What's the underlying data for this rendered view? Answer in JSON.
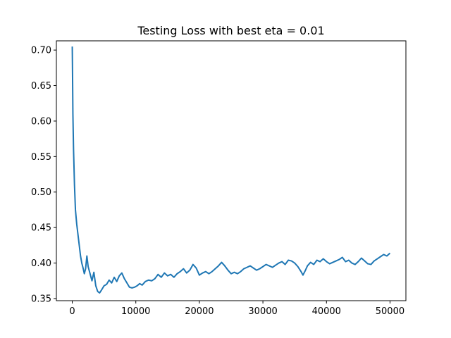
{
  "chart_data": {
    "type": "line",
    "title": "Testing Loss with best eta = 0.01",
    "xlabel": "",
    "ylabel": "",
    "xlim": [
      -2500,
      52500
    ],
    "ylim": [
      0.347,
      0.713
    ],
    "x_ticks": [
      0,
      10000,
      20000,
      30000,
      40000,
      50000
    ],
    "y_ticks": [
      0.35,
      0.4,
      0.45,
      0.5,
      0.55,
      0.6,
      0.65,
      0.7
    ],
    "grid": false,
    "legend": "none",
    "line_color": "#1f77b4",
    "series": [
      {
        "points": [
          [
            0,
            0.705
          ],
          [
            50,
            0.66
          ],
          [
            100,
            0.61
          ],
          [
            200,
            0.56
          ],
          [
            350,
            0.51
          ],
          [
            500,
            0.475
          ],
          [
            700,
            0.455
          ],
          [
            900,
            0.44
          ],
          [
            1100,
            0.425
          ],
          [
            1300,
            0.41
          ],
          [
            1500,
            0.4
          ],
          [
            1700,
            0.393
          ],
          [
            1900,
            0.385
          ],
          [
            2100,
            0.392
          ],
          [
            2300,
            0.41
          ],
          [
            2500,
            0.395
          ],
          [
            2800,
            0.385
          ],
          [
            3100,
            0.375
          ],
          [
            3400,
            0.387
          ],
          [
            3700,
            0.368
          ],
          [
            4000,
            0.36
          ],
          [
            4300,
            0.358
          ],
          [
            4600,
            0.362
          ],
          [
            5000,
            0.368
          ],
          [
            5400,
            0.37
          ],
          [
            5800,
            0.376
          ],
          [
            6200,
            0.372
          ],
          [
            6600,
            0.38
          ],
          [
            7000,
            0.374
          ],
          [
            7400,
            0.382
          ],
          [
            7800,
            0.386
          ],
          [
            8200,
            0.378
          ],
          [
            8600,
            0.372
          ],
          [
            9000,
            0.366
          ],
          [
            9400,
            0.365
          ],
          [
            9800,
            0.366
          ],
          [
            10200,
            0.368
          ],
          [
            10600,
            0.371
          ],
          [
            11000,
            0.369
          ],
          [
            11500,
            0.374
          ],
          [
            12000,
            0.376
          ],
          [
            12500,
            0.375
          ],
          [
            13000,
            0.378
          ],
          [
            13500,
            0.384
          ],
          [
            14000,
            0.38
          ],
          [
            14500,
            0.386
          ],
          [
            15000,
            0.382
          ],
          [
            15500,
            0.384
          ],
          [
            16000,
            0.38
          ],
          [
            16500,
            0.385
          ],
          [
            17000,
            0.388
          ],
          [
            17500,
            0.392
          ],
          [
            18000,
            0.386
          ],
          [
            18500,
            0.39
          ],
          [
            19000,
            0.398
          ],
          [
            19500,
            0.393
          ],
          [
            20000,
            0.383
          ],
          [
            20500,
            0.386
          ],
          [
            21000,
            0.388
          ],
          [
            21500,
            0.385
          ],
          [
            22000,
            0.388
          ],
          [
            22500,
            0.392
          ],
          [
            23000,
            0.396
          ],
          [
            23500,
            0.401
          ],
          [
            24000,
            0.396
          ],
          [
            24500,
            0.39
          ],
          [
            25000,
            0.385
          ],
          [
            25500,
            0.387
          ],
          [
            26000,
            0.385
          ],
          [
            26500,
            0.388
          ],
          [
            27000,
            0.392
          ],
          [
            27500,
            0.394
          ],
          [
            28000,
            0.396
          ],
          [
            28500,
            0.393
          ],
          [
            29000,
            0.39
          ],
          [
            29500,
            0.392
          ],
          [
            30000,
            0.395
          ],
          [
            30500,
            0.398
          ],
          [
            31000,
            0.396
          ],
          [
            31500,
            0.394
          ],
          [
            32000,
            0.397
          ],
          [
            32500,
            0.4
          ],
          [
            33000,
            0.402
          ],
          [
            33500,
            0.398
          ],
          [
            34000,
            0.404
          ],
          [
            34500,
            0.403
          ],
          [
            35000,
            0.4
          ],
          [
            35500,
            0.395
          ],
          [
            36000,
            0.388
          ],
          [
            36300,
            0.383
          ],
          [
            36700,
            0.39
          ],
          [
            37000,
            0.396
          ],
          [
            37500,
            0.401
          ],
          [
            38000,
            0.398
          ],
          [
            38500,
            0.404
          ],
          [
            39000,
            0.402
          ],
          [
            39500,
            0.406
          ],
          [
            40000,
            0.402
          ],
          [
            40500,
            0.399
          ],
          [
            41000,
            0.401
          ],
          [
            41500,
            0.403
          ],
          [
            42000,
            0.405
          ],
          [
            42500,
            0.408
          ],
          [
            43000,
            0.402
          ],
          [
            43500,
            0.404
          ],
          [
            44000,
            0.4
          ],
          [
            44500,
            0.398
          ],
          [
            45000,
            0.402
          ],
          [
            45500,
            0.407
          ],
          [
            46000,
            0.403
          ],
          [
            46500,
            0.399
          ],
          [
            47000,
            0.398
          ],
          [
            47500,
            0.403
          ],
          [
            48000,
            0.406
          ],
          [
            48500,
            0.409
          ],
          [
            49000,
            0.412
          ],
          [
            49500,
            0.41
          ],
          [
            50000,
            0.414
          ]
        ]
      }
    ]
  }
}
